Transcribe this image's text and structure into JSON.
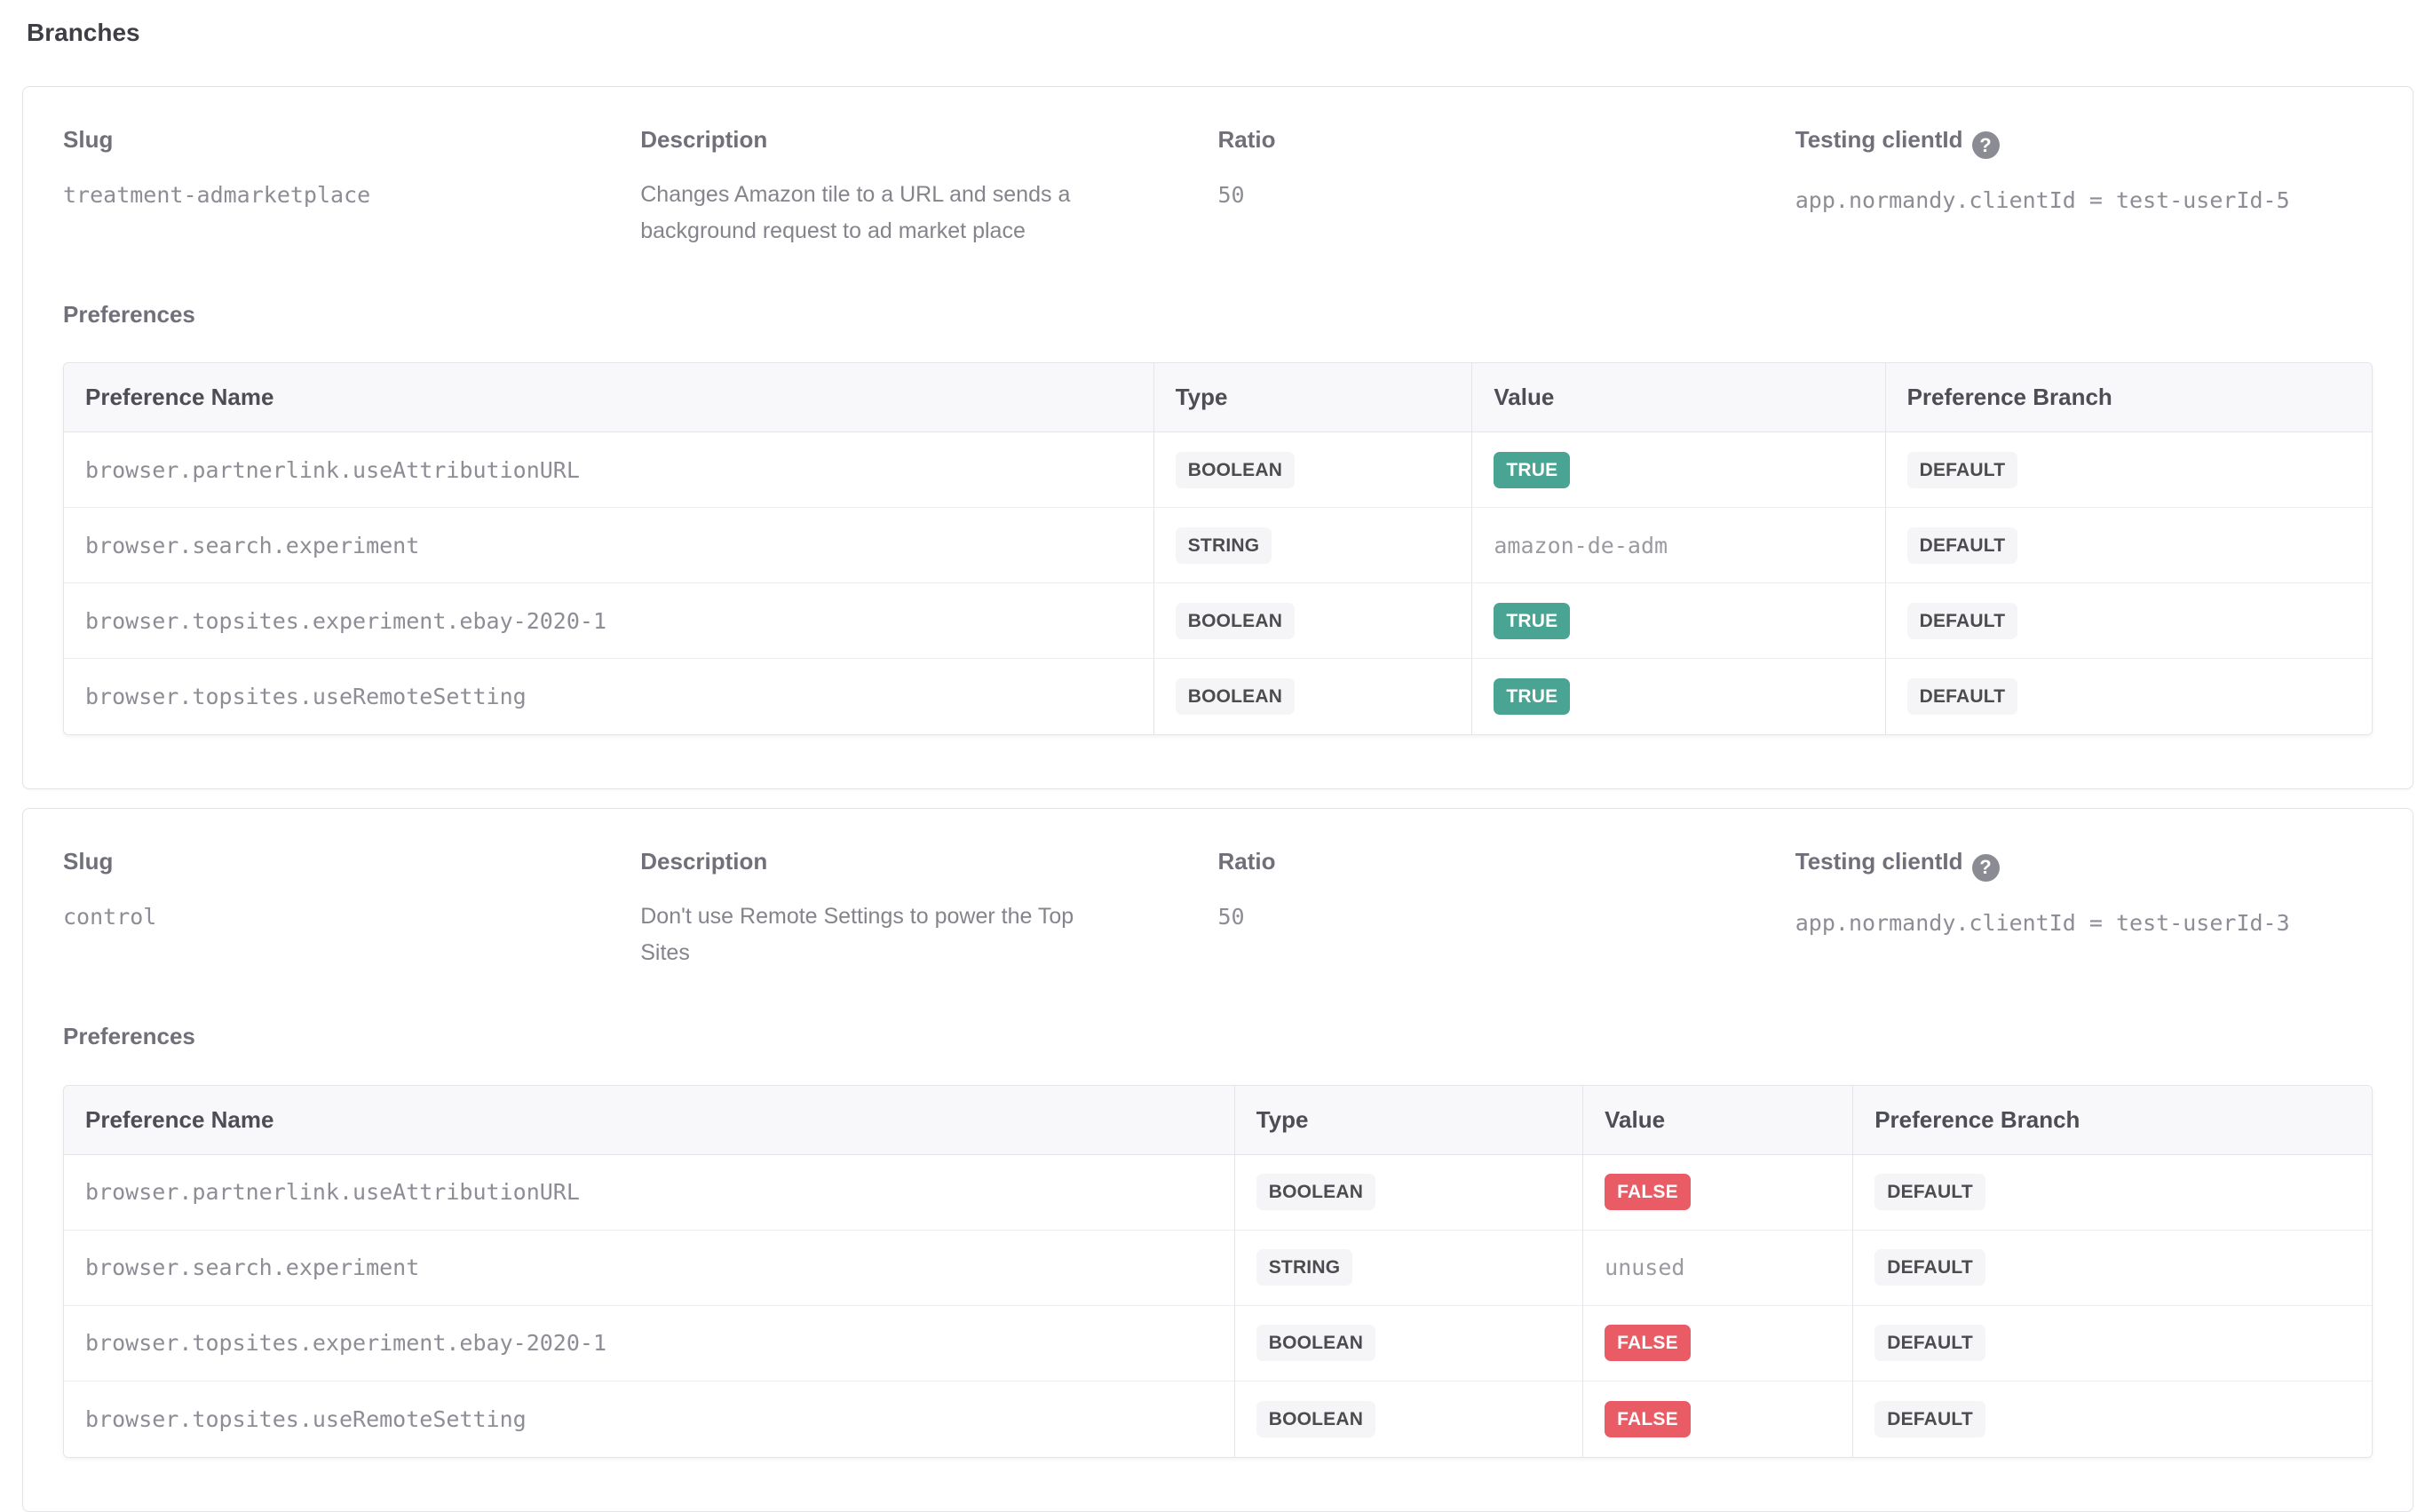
{
  "labels": {
    "page_title": "Branches",
    "slug": "Slug",
    "description": "Description",
    "ratio": "Ratio",
    "testing_clientid": "Testing clientId",
    "help_icon": "?",
    "preferences": "Preferences",
    "table_headers": [
      "Preference Name",
      "Type",
      "Value",
      "Preference Branch"
    ]
  },
  "colors": {
    "badge_true": "#4aa493",
    "badge_false": "#e95c65",
    "badge_neutral_bg": "#f5f5f7",
    "badge_neutral_text": "#4b4b50"
  },
  "branches": [
    {
      "slug": "treatment-admarketplace",
      "description": "Changes Amazon tile to a URL and sends a background request to ad market place",
      "ratio": "50",
      "testing_clientid": "app.normandy.clientId = test-userId-5",
      "preferences": [
        {
          "name": "browser.partnerlink.useAttributionURL",
          "type": "BOOLEAN",
          "value": "TRUE",
          "branch": "DEFAULT"
        },
        {
          "name": "browser.search.experiment",
          "type": "STRING",
          "value": "amazon-de-adm",
          "branch": "DEFAULT"
        },
        {
          "name": "browser.topsites.experiment.ebay-2020-1",
          "type": "BOOLEAN",
          "value": "TRUE",
          "branch": "DEFAULT"
        },
        {
          "name": "browser.topsites.useRemoteSetting",
          "type": "BOOLEAN",
          "value": "TRUE",
          "branch": "DEFAULT"
        }
      ]
    },
    {
      "slug": "control",
      "description": "Don't use Remote Settings to power the Top Sites",
      "ratio": "50",
      "testing_clientid": "app.normandy.clientId = test-userId-3",
      "preferences": [
        {
          "name": "browser.partnerlink.useAttributionURL",
          "type": "BOOLEAN",
          "value": "FALSE",
          "branch": "DEFAULT"
        },
        {
          "name": "browser.search.experiment",
          "type": "STRING",
          "value": "unused",
          "branch": "DEFAULT"
        },
        {
          "name": "browser.topsites.experiment.ebay-2020-1",
          "type": "BOOLEAN",
          "value": "FALSE",
          "branch": "DEFAULT"
        },
        {
          "name": "browser.topsites.useRemoteSetting",
          "type": "BOOLEAN",
          "value": "FALSE",
          "branch": "DEFAULT"
        }
      ]
    }
  ]
}
